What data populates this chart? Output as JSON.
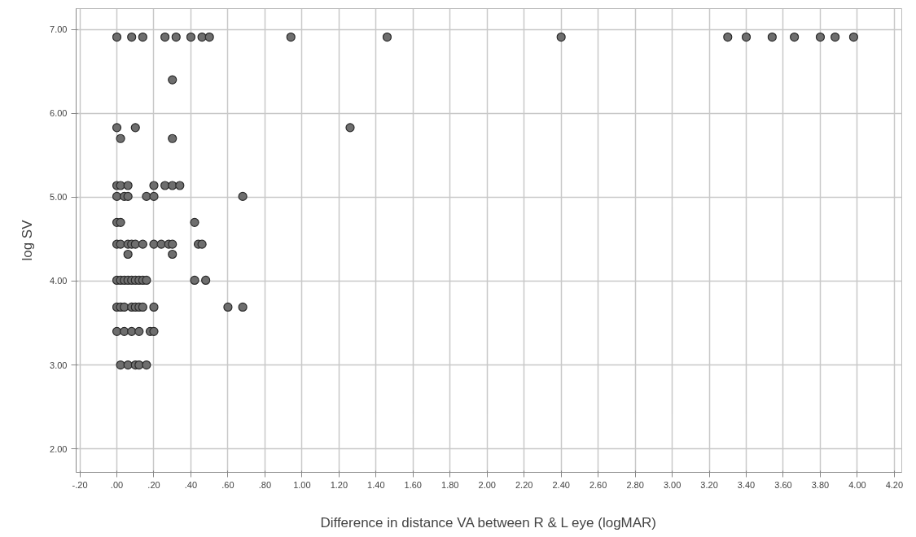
{
  "chart_data": {
    "type": "scatter",
    "xlabel": "Difference in distance VA between R & L eye (logMAR)",
    "ylabel": "log SV",
    "xlim": [
      -0.22,
      4.24
    ],
    "ylim": [
      1.72,
      7.25
    ],
    "xticks": [
      {
        "value": -0.2,
        "label": "-.20"
      },
      {
        "value": 0,
        "label": ".00"
      },
      {
        "value": 0.2,
        "label": ".20"
      },
      {
        "value": 0.4,
        "label": ".40"
      },
      {
        "value": 0.6,
        "label": ".60"
      },
      {
        "value": 0.8,
        "label": ".80"
      },
      {
        "value": 1.0,
        "label": "1.00"
      },
      {
        "value": 1.2,
        "label": "1.20"
      },
      {
        "value": 1.4,
        "label": "1.40"
      },
      {
        "value": 1.6,
        "label": "1.60"
      },
      {
        "value": 1.8,
        "label": "1.80"
      },
      {
        "value": 2.0,
        "label": "2.00"
      },
      {
        "value": 2.2,
        "label": "2.20"
      },
      {
        "value": 2.4,
        "label": "2.40"
      },
      {
        "value": 2.6,
        "label": "2.60"
      },
      {
        "value": 2.8,
        "label": "2.80"
      },
      {
        "value": 3.0,
        "label": "3.00"
      },
      {
        "value": 3.2,
        "label": "3.20"
      },
      {
        "value": 3.4,
        "label": "3.40"
      },
      {
        "value": 3.6,
        "label": "3.60"
      },
      {
        "value": 3.8,
        "label": "3.80"
      },
      {
        "value": 4.0,
        "label": "4.00"
      },
      {
        "value": 4.2,
        "label": "4.20"
      }
    ],
    "yticks": [
      {
        "value": 2,
        "label": "2.00"
      },
      {
        "value": 3,
        "label": "3.00"
      },
      {
        "value": 4,
        "label": "4.00"
      },
      {
        "value": 5,
        "label": "5.00"
      },
      {
        "value": 6,
        "label": "6.00"
      },
      {
        "value": 7,
        "label": "7.00"
      }
    ],
    "grid": true,
    "marker": "circle",
    "series": [
      {
        "color": "#6e6e6e",
        "x": [
          0.0,
          0.08,
          0.14,
          0.26,
          0.32,
          0.4,
          0.46,
          0.5,
          0.94,
          1.46,
          2.4,
          3.3,
          3.4,
          3.54,
          3.66,
          3.8,
          3.88,
          3.98,
          0.3,
          0.0,
          0.1,
          1.26,
          0.02,
          0.3,
          0.0,
          0.02,
          0.06,
          0.2,
          0.26,
          0.3,
          0.34,
          0.0,
          0.04,
          0.06,
          0.16,
          0.2,
          0.68,
          0.0,
          0.02,
          0.42,
          0.0,
          0.02,
          0.06,
          0.08,
          0.1,
          0.14,
          0.2,
          0.24,
          0.28,
          0.3,
          0.44,
          0.46,
          0.06,
          0.3,
          0.0,
          0.02,
          0.04,
          0.06,
          0.08,
          0.1,
          0.12,
          0.14,
          0.16,
          0.42,
          0.48,
          0.0,
          0.02,
          0.04,
          0.08,
          0.1,
          0.12,
          0.14,
          0.2,
          0.6,
          0.68,
          0.0,
          0.04,
          0.08,
          0.12,
          0.18,
          0.2,
          0.02,
          0.06,
          0.1,
          0.12,
          0.16
        ],
        "values": [
          6.91,
          6.91,
          6.91,
          6.91,
          6.91,
          6.91,
          6.91,
          6.91,
          6.91,
          6.91,
          6.91,
          6.91,
          6.91,
          6.91,
          6.91,
          6.91,
          6.91,
          6.91,
          6.4,
          5.83,
          5.83,
          5.83,
          5.7,
          5.7,
          5.14,
          5.14,
          5.14,
          5.14,
          5.14,
          5.14,
          5.14,
          5.01,
          5.01,
          5.01,
          5.01,
          5.01,
          5.01,
          4.7,
          4.7,
          4.7,
          4.44,
          4.44,
          4.44,
          4.44,
          4.44,
          4.44,
          4.44,
          4.44,
          4.44,
          4.44,
          4.44,
          4.44,
          4.32,
          4.32,
          4.01,
          4.01,
          4.01,
          4.01,
          4.01,
          4.01,
          4.01,
          4.01,
          4.01,
          4.01,
          4.01,
          3.69,
          3.69,
          3.69,
          3.69,
          3.69,
          3.69,
          3.69,
          3.69,
          3.69,
          3.69,
          3.4,
          3.4,
          3.4,
          3.4,
          3.4,
          3.4,
          3.0,
          3.0,
          3.0,
          3.0,
          3.0
        ]
      }
    ]
  }
}
